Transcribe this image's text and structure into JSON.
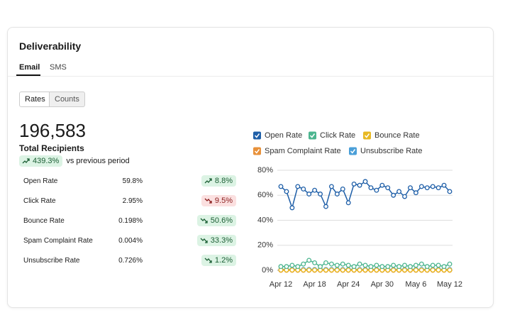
{
  "header": {
    "title": "Deliverability"
  },
  "tabs": [
    "Email",
    "SMS"
  ],
  "toggle": [
    "Rates",
    "Counts"
  ],
  "summary": {
    "total": "196,583",
    "label": "Total Recipients",
    "change": "439.3%",
    "change_note": "vs previous period"
  },
  "metrics": [
    {
      "name": "Open Rate",
      "value": "59.8%",
      "change": "8.8%"
    },
    {
      "name": "Click Rate",
      "value": "2.95%",
      "change": "9.5%"
    },
    {
      "name": "Bounce Rate",
      "value": "0.198%",
      "change": "50.6%"
    },
    {
      "name": "Spam Complaint Rate",
      "value": "0.004%",
      "change": "33.3%"
    },
    {
      "name": "Unsubscribe Rate",
      "value": "0.726%",
      "change": "1.2%"
    }
  ],
  "chart_data": {
    "type": "line",
    "categories": [
      "Apr 12",
      null,
      null,
      null,
      null,
      null,
      "Apr 18",
      null,
      null,
      null,
      null,
      null,
      "Apr 24",
      null,
      null,
      null,
      null,
      null,
      "Apr 30",
      null,
      null,
      null,
      null,
      null,
      "May 6",
      null,
      null,
      null,
      null,
      null,
      "May 12"
    ],
    "ylim": [
      0,
      80
    ],
    "yticks": [
      {
        "value": 0,
        "label": "0%"
      },
      {
        "value": 20,
        "label": "20%"
      },
      {
        "value": 40,
        "label": "40%"
      },
      {
        "value": 60,
        "label": "60%"
      },
      {
        "value": 80,
        "label": "80%"
      }
    ],
    "grid": true,
    "series": [
      {
        "name": "Open Rate",
        "color": "#1f5fa8",
        "values": [
          67,
          63,
          50,
          67,
          65,
          61,
          64,
          61,
          51,
          67,
          61,
          65,
          54,
          69,
          68,
          71,
          66,
          64,
          68,
          66,
          60,
          63,
          59,
          66,
          62,
          67,
          66,
          67,
          66,
          68,
          63
        ]
      },
      {
        "name": "Click Rate",
        "color": "#4cb58f",
        "values": [
          3,
          3,
          4,
          3,
          5,
          8,
          6,
          3,
          6,
          5,
          4,
          5,
          4,
          3,
          5,
          4,
          3,
          4,
          3,
          3,
          4,
          3,
          4,
          3,
          4,
          5,
          3,
          4,
          4,
          3,
          5
        ]
      },
      {
        "name": "Bounce Rate",
        "color": "#e8b923",
        "values": [
          0.2,
          0.2,
          0.2,
          0.2,
          0.2,
          0.2,
          0.2,
          0.2,
          0.2,
          0.2,
          0.2,
          0.2,
          0.2,
          0.2,
          0.2,
          0.2,
          0.2,
          0.2,
          0.2,
          0.2,
          0.2,
          0.2,
          0.2,
          0.2,
          0.2,
          0.2,
          0.2,
          0.2,
          0.2,
          0.2,
          0.2
        ]
      },
      {
        "name": "Spam Complaint Rate",
        "color": "#e8913a",
        "values": [
          0,
          0,
          0,
          0,
          0,
          0,
          0,
          0,
          0,
          0,
          0,
          0,
          0,
          0,
          0,
          0,
          0,
          0,
          0,
          0,
          0,
          0,
          0,
          0,
          0,
          0,
          0,
          0,
          0,
          0,
          0
        ]
      },
      {
        "name": "Unsubscribe Rate",
        "color": "#4a9fd8",
        "values": [
          0.7,
          0.7,
          0.7,
          0.7,
          0.7,
          0.7,
          0.7,
          0.7,
          0.7,
          0.7,
          0.7,
          0.7,
          0.7,
          0.7,
          0.7,
          0.7,
          0.7,
          0.7,
          0.7,
          0.7,
          0.7,
          0.7,
          0.7,
          0.7,
          0.7,
          0.7,
          0.7,
          0.7,
          0.7,
          0.7,
          0.7
        ]
      }
    ]
  }
}
